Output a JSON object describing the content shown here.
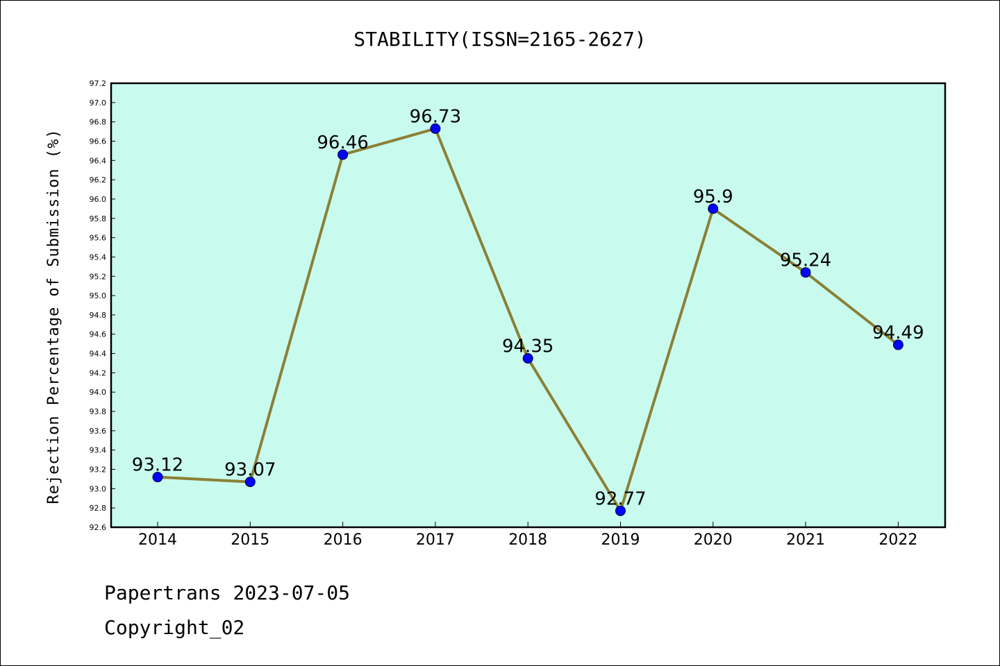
{
  "chart_data": {
    "type": "line",
    "title": "STABILITY(ISSN=2165-2627)",
    "xlabel": "",
    "ylabel": "Rejection Percentage of Submission (%)",
    "categories": [
      "2014",
      "2015",
      "2016",
      "2017",
      "2018",
      "2019",
      "2020",
      "2021",
      "2022"
    ],
    "series": [
      {
        "values": [
          93.12,
          93.07,
          96.46,
          96.73,
          94.35,
          92.77,
          95.9,
          95.24,
          94.49
        ],
        "labels": [
          "93.12",
          "93.07",
          "96.46",
          "96.73",
          "94.35",
          "92.77",
          "95.9",
          "95.24",
          "94.49"
        ],
        "line_color": "#8b8036",
        "marker_color": "#0000ff"
      }
    ],
    "ylim": [
      92.6,
      97.2
    ],
    "yticks": [
      "92.6",
      "92.8",
      "93.0",
      "93.2",
      "93.4",
      "93.6",
      "93.8",
      "94.0",
      "94.2",
      "94.4",
      "94.6",
      "94.8",
      "95.0",
      "95.2",
      "95.4",
      "95.6",
      "95.8",
      "96.0",
      "96.2",
      "96.4",
      "96.6",
      "96.8",
      "97.0",
      "97.2"
    ],
    "plot_background": "#c8fbee",
    "grid": false,
    "legend": "none"
  },
  "footer": {
    "line1": "Papertrans 2023-07-05",
    "line2": "Copyright_02"
  }
}
